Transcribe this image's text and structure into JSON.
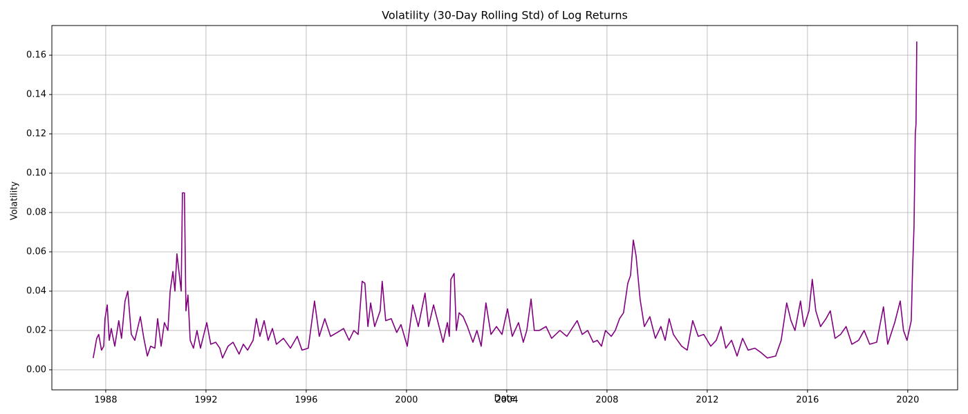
{
  "chart_data": {
    "type": "line",
    "title": "Volatility (30-Day Rolling Std) of Log Returns",
    "xlabel": "Date",
    "ylabel": "Volatility",
    "color": "#800080",
    "grid": true,
    "xlim": [
      1985.85,
      2021.99
    ],
    "ylim": [
      -0.0102,
      0.1751
    ],
    "xticks": [
      1988,
      1992,
      1996,
      2000,
      2004,
      2008,
      2012,
      2016,
      2020
    ],
    "yticks": [
      {
        "value": 0,
        "label": "0.00"
      },
      {
        "value": 0.02,
        "label": "0.02"
      },
      {
        "value": 0.04,
        "label": "0.04"
      },
      {
        "value": 0.06,
        "label": "0.06"
      },
      {
        "value": 0.08,
        "label": "0.08"
      },
      {
        "value": 0.1,
        "label": "0.10"
      },
      {
        "value": 0.12,
        "label": "0.12"
      },
      {
        "value": 0.14,
        "label": "0.14"
      },
      {
        "value": 0.16,
        "label": "0.16"
      }
    ],
    "x": [
      1987.5,
      1987.64,
      1987.72,
      1987.83,
      1987.92,
      1987.97,
      1988.06,
      1988.14,
      1988.22,
      1988.36,
      1988.52,
      1988.63,
      1988.77,
      1988.88,
      1989.02,
      1989.16,
      1989.38,
      1989.52,
      1989.66,
      1989.79,
      1989.96,
      1990.07,
      1990.21,
      1990.34,
      1990.48,
      1990.57,
      1990.68,
      1990.76,
      1990.84,
      1990.92,
      1991.01,
      1991.06,
      1991.14,
      1991.2,
      1991.28,
      1991.37,
      1991.5,
      1991.64,
      1991.78,
      1992.03,
      1992.19,
      1992.39,
      1992.55,
      1992.66,
      1992.88,
      1993.08,
      1993.32,
      1993.49,
      1993.66,
      1993.88,
      1994.01,
      1994.15,
      1994.32,
      1994.48,
      1994.65,
      1994.81,
      1995.09,
      1995.37,
      1995.64,
      1995.83,
      1996.08,
      1996.33,
      1996.52,
      1996.74,
      1996.97,
      1997.24,
      1997.49,
      1997.71,
      1997.9,
      1998.07,
      1998.23,
      1998.34,
      1998.46,
      1998.57,
      1998.73,
      1998.95,
      1999.03,
      1999.17,
      1999.39,
      1999.61,
      1999.78,
      2000.03,
      2000.25,
      2000.47,
      2000.74,
      2000.88,
      2001.08,
      2001.3,
      2001.46,
      2001.63,
      2001.71,
      2001.77,
      2001.9,
      2001.99,
      2002.1,
      2002.26,
      2002.43,
      2002.65,
      2002.81,
      2002.98,
      2003.17,
      2003.37,
      2003.59,
      2003.81,
      2004.03,
      2004.22,
      2004.47,
      2004.66,
      2004.8,
      2004.97,
      2005.1,
      2005.3,
      2005.57,
      2005.79,
      2006.12,
      2006.4,
      2006.81,
      2007.01,
      2007.23,
      2007.45,
      2007.61,
      2007.78,
      2007.94,
      2008.17,
      2008.33,
      2008.5,
      2008.66,
      2008.83,
      2008.94,
      2009.05,
      2009.16,
      2009.32,
      2009.49,
      2009.71,
      2009.93,
      2010.15,
      2010.32,
      2010.48,
      2010.65,
      2010.81,
      2010.98,
      2011.2,
      2011.42,
      2011.64,
      2011.86,
      2012.14,
      2012.36,
      2012.55,
      2012.74,
      2012.97,
      2013.19,
      2013.41,
      2013.63,
      2013.9,
      2014.12,
      2014.4,
      2014.73,
      2014.95,
      2015.17,
      2015.34,
      2015.5,
      2015.72,
      2015.86,
      2016.06,
      2016.19,
      2016.33,
      2016.52,
      2016.74,
      2016.91,
      2017.1,
      2017.32,
      2017.54,
      2017.77,
      2018.04,
      2018.26,
      2018.48,
      2018.76,
      2019.03,
      2019.2,
      2019.48,
      2019.7,
      2019.83,
      2019.97,
      2020.14,
      2020.19,
      2020.25,
      2020.28,
      2020.3,
      2020.33,
      2020.36
    ],
    "values": [
      0.006,
      0.016,
      0.018,
      0.01,
      0.012,
      0.026,
      0.033,
      0.015,
      0.021,
      0.012,
      0.025,
      0.016,
      0.035,
      0.04,
      0.018,
      0.015,
      0.027,
      0.016,
      0.007,
      0.012,
      0.011,
      0.026,
      0.012,
      0.024,
      0.02,
      0.04,
      0.05,
      0.04,
      0.059,
      0.05,
      0.04,
      0.09,
      0.09,
      0.03,
      0.038,
      0.015,
      0.011,
      0.02,
      0.011,
      0.024,
      0.013,
      0.014,
      0.011,
      0.006,
      0.012,
      0.014,
      0.008,
      0.013,
      0.01,
      0.015,
      0.026,
      0.017,
      0.025,
      0.015,
      0.021,
      0.013,
      0.016,
      0.011,
      0.017,
      0.01,
      0.011,
      0.035,
      0.017,
      0.026,
      0.017,
      0.019,
      0.021,
      0.015,
      0.02,
      0.018,
      0.045,
      0.044,
      0.022,
      0.034,
      0.022,
      0.03,
      0.045,
      0.025,
      0.026,
      0.019,
      0.023,
      0.012,
      0.033,
      0.022,
      0.039,
      0.022,
      0.033,
      0.022,
      0.014,
      0.024,
      0.017,
      0.046,
      0.049,
      0.02,
      0.029,
      0.027,
      0.022,
      0.014,
      0.02,
      0.012,
      0.034,
      0.018,
      0.022,
      0.018,
      0.031,
      0.017,
      0.024,
      0.014,
      0.02,
      0.036,
      0.02,
      0.02,
      0.022,
      0.016,
      0.02,
      0.017,
      0.025,
      0.018,
      0.02,
      0.014,
      0.015,
      0.012,
      0.02,
      0.017,
      0.02,
      0.026,
      0.029,
      0.044,
      0.048,
      0.066,
      0.058,
      0.036,
      0.022,
      0.027,
      0.016,
      0.022,
      0.015,
      0.026,
      0.018,
      0.015,
      0.012,
      0.01,
      0.025,
      0.017,
      0.018,
      0.012,
      0.015,
      0.022,
      0.011,
      0.015,
      0.007,
      0.016,
      0.01,
      0.011,
      0.009,
      0.006,
      0.007,
      0.015,
      0.034,
      0.025,
      0.02,
      0.035,
      0.022,
      0.03,
      0.046,
      0.03,
      0.022,
      0.026,
      0.03,
      0.016,
      0.018,
      0.022,
      0.013,
      0.015,
      0.02,
      0.013,
      0.014,
      0.032,
      0.013,
      0.024,
      0.035,
      0.02,
      0.015,
      0.025,
      0.05,
      0.073,
      0.1,
      0.12,
      0.125,
      0.167
    ]
  }
}
